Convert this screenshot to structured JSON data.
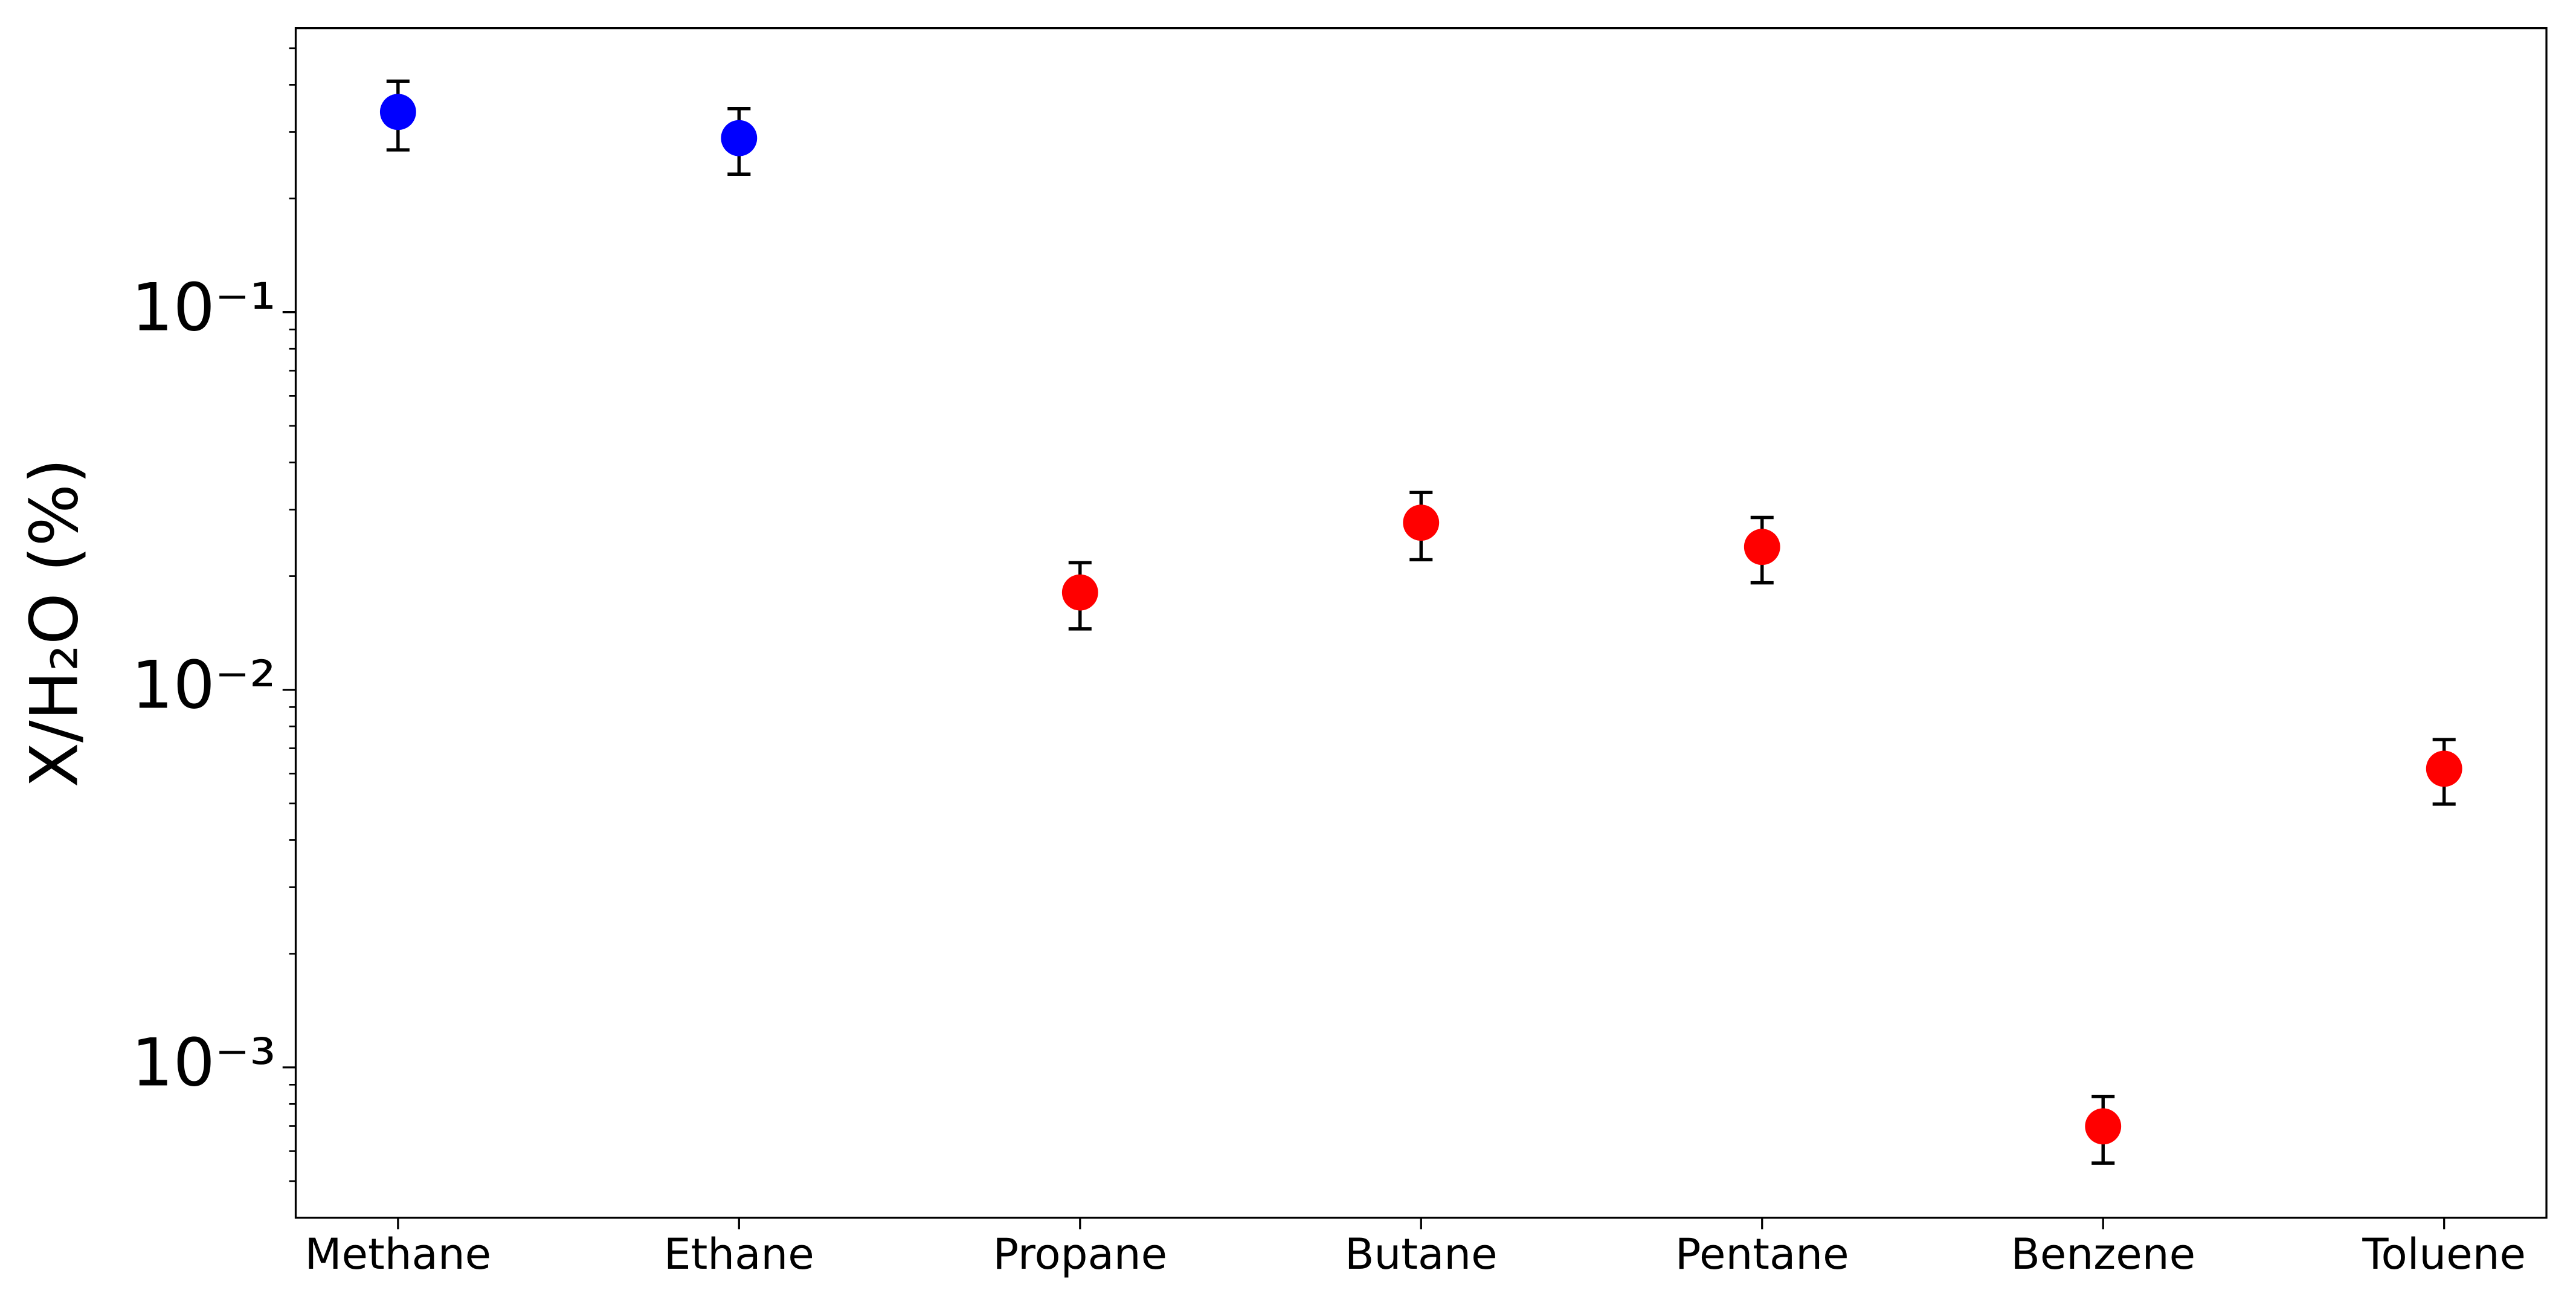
{
  "chart_data": {
    "type": "errorbar",
    "ylabel": "X/H₂O (%)",
    "categories": [
      "Methane",
      "Ethane",
      "Propane",
      "Butane",
      "Pentane",
      "Benzene",
      "Toluene"
    ],
    "values": [
      0.339,
      0.289,
      0.0181,
      0.0277,
      0.0239,
      0.000698,
      0.00618
    ],
    "errors": [
      0.07,
      0.057,
      0.0036,
      0.0056,
      0.0047,
      0.00014,
      0.0012
    ],
    "colors": [
      "#0000ff",
      "#0000ff",
      "#ff0000",
      "#ff0000",
      "#ff0000",
      "#ff0000",
      "#ff0000"
    ],
    "ylog": true,
    "ylim": [
      0.0004,
      0.565
    ],
    "yticks": [
      {
        "value": 0.001,
        "label": "10⁻³"
      },
      {
        "value": 0.01,
        "label": "10⁻²"
      },
      {
        "value": 0.1,
        "label": "10⁻¹"
      }
    ],
    "yminorticks": [
      0.0005,
      0.0006,
      0.0007,
      0.0008,
      0.0009,
      0.002,
      0.003,
      0.004,
      0.005,
      0.006,
      0.007,
      0.008,
      0.009,
      0.02,
      0.03,
      0.04,
      0.05,
      0.06,
      0.07,
      0.08,
      0.09,
      0.2,
      0.3,
      0.4,
      0.5
    ]
  }
}
